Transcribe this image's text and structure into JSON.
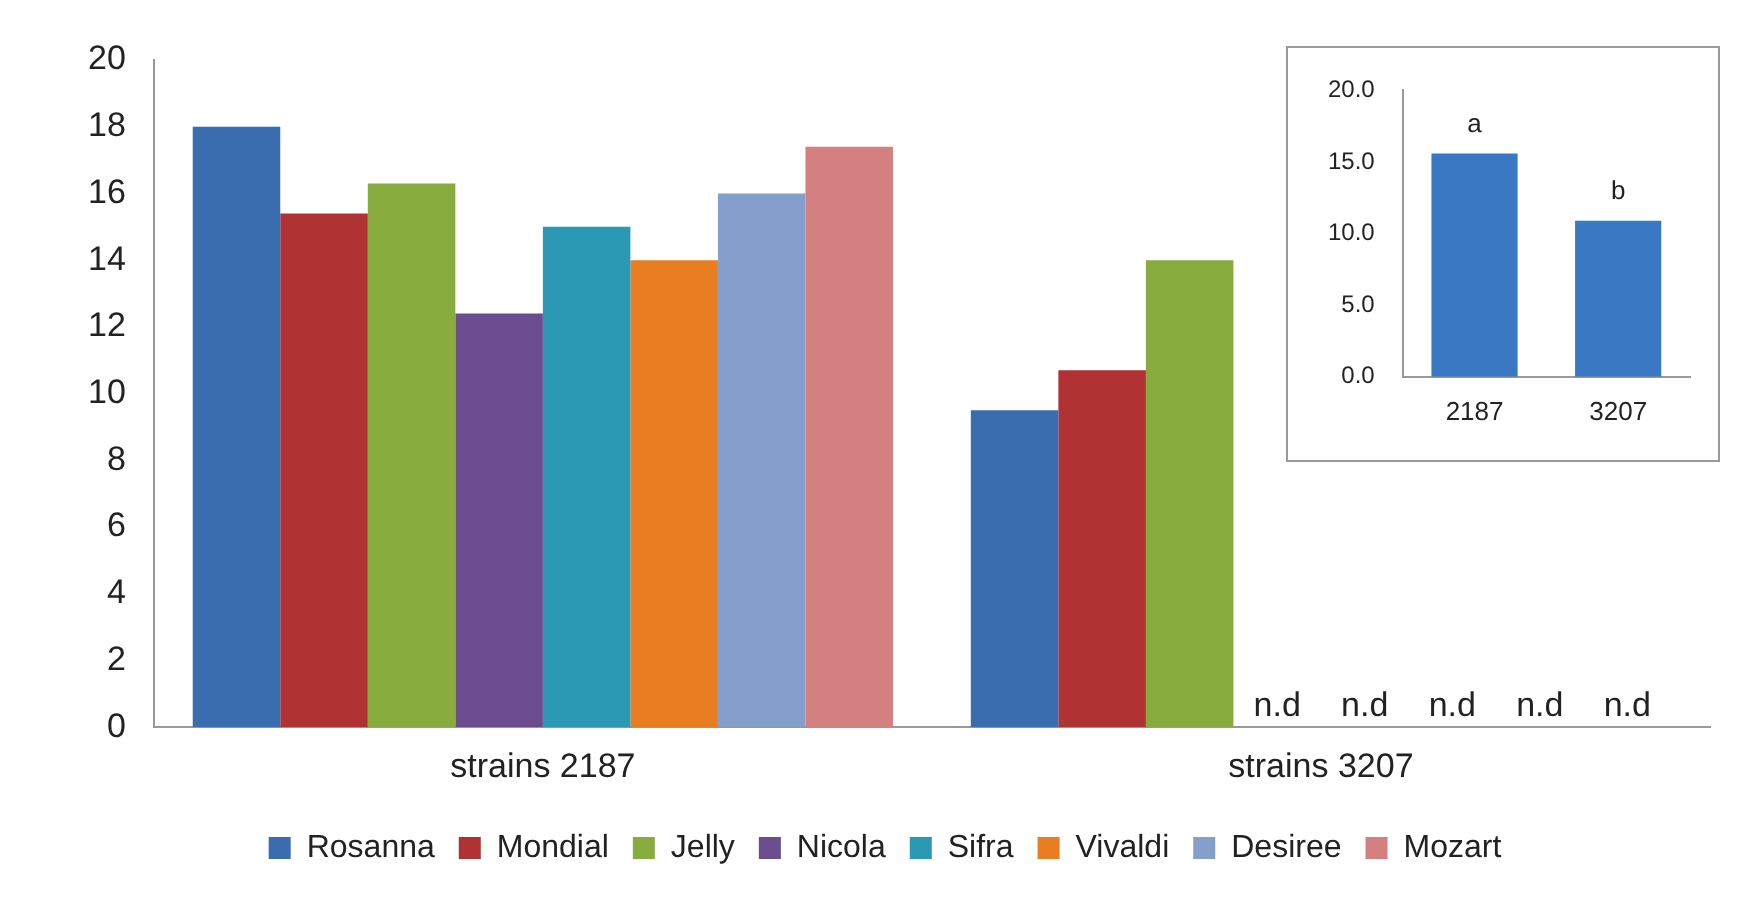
{
  "chart_data": [
    {
      "type": "bar",
      "categories": [
        "strains 2187",
        "strains 3207"
      ],
      "series": [
        {
          "name": "Rosanna",
          "color": "#3a6cb0",
          "values": [
            18.0,
            9.5
          ]
        },
        {
          "name": "Mondial",
          "color": "#b03232",
          "values": [
            15.4,
            10.7
          ]
        },
        {
          "name": "Jelly",
          "color": "#88ab3e",
          "values": [
            16.3,
            14.0
          ]
        },
        {
          "name": "Nicola",
          "color": "#6b4c8e",
          "values": [
            12.4,
            null
          ],
          "value_labels": [
            null,
            "n.d"
          ]
        },
        {
          "name": "Sifra",
          "color": "#2b98b4",
          "values": [
            15.0,
            null
          ],
          "value_labels": [
            null,
            "n.d"
          ]
        },
        {
          "name": "Vivaldi",
          "color": "#e87d22",
          "values": [
            14.0,
            null
          ],
          "value_labels": [
            null,
            "n.d"
          ]
        },
        {
          "name": "Desiree",
          "color": "#849fcc",
          "values": [
            16.0,
            null
          ],
          "value_labels": [
            null,
            "n.d"
          ]
        },
        {
          "name": "Mozart",
          "color": "#d48080",
          "values": [
            17.4,
            null
          ],
          "value_labels": [
            null,
            "n.d"
          ]
        }
      ],
      "ylim": [
        0,
        20
      ],
      "yticks": [
        0,
        2,
        4,
        6,
        8,
        10,
        12,
        14,
        16,
        18,
        20
      ],
      "grid": false,
      "legend": "bottom"
    },
    {
      "type": "bar",
      "categories": [
        "2187",
        "3207"
      ],
      "values": [
        15.6,
        10.9
      ],
      "color": "#3a78c4",
      "ylim": [
        0,
        20
      ],
      "yticks": [
        {
          "value": 0,
          "label": "0.0"
        },
        {
          "value": 5,
          "label": "5.0"
        },
        {
          "value": 10,
          "label": "10.0"
        },
        {
          "value": 15,
          "label": "15.0"
        },
        {
          "value": 20,
          "label": "20.0"
        }
      ],
      "annotations": [
        {
          "text": "a",
          "x": "2187",
          "y": 15.6
        },
        {
          "text": "b",
          "x": "3207",
          "y": 10.9
        }
      ],
      "grid": false
    }
  ]
}
